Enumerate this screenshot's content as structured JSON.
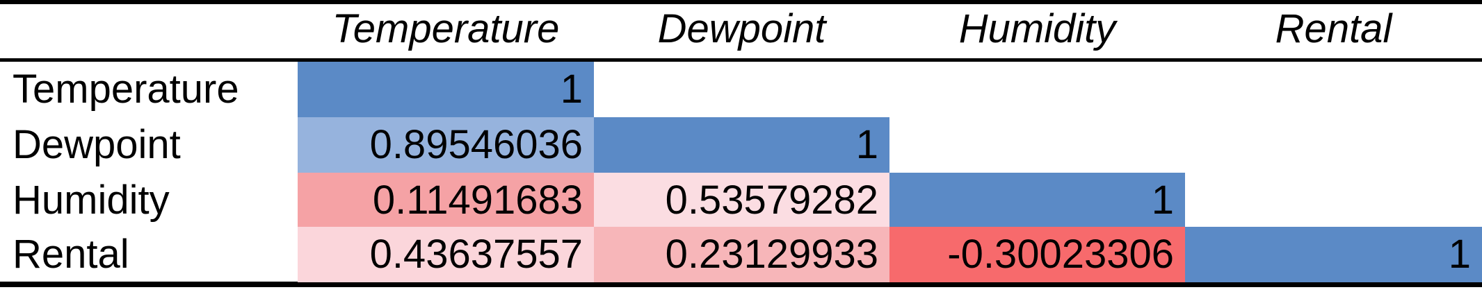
{
  "chart_data": {
    "type": "heatmap",
    "title": "",
    "columns": [
      "Temperature",
      "Dewpoint",
      "Humidity",
      "Rental"
    ],
    "rows": [
      "Temperature",
      "Dewpoint",
      "Humidity",
      "Rental"
    ],
    "cells": [
      [
        {
          "text": "1",
          "value": 1
        },
        null,
        null,
        null
      ],
      [
        {
          "text": "0.89546036",
          "value": 0.89546036
        },
        {
          "text": "1",
          "value": 1
        },
        null,
        null
      ],
      [
        {
          "text": "0.11491683",
          "value": 0.11491683
        },
        {
          "text": "0.53579282",
          "value": 0.53579282
        },
        {
          "text": "1",
          "value": 1
        },
        null
      ],
      [
        {
          "text": "0.43637557",
          "value": 0.43637557
        },
        {
          "text": "0.23129933",
          "value": 0.23129933
        },
        {
          "text": "-0.30023306",
          "value": -0.30023306
        },
        {
          "text": "1",
          "value": 1
        }
      ]
    ],
    "colors": {
      "high": "#5b8ac6",
      "low": "#f8696b",
      "mid": "#fcfcff"
    },
    "cell_fills": [
      [
        "#5b8ac6",
        null,
        null,
        null
      ],
      [
        "#96b3dd",
        "#5b8ac6",
        null,
        null
      ],
      [
        "#f5a2a5",
        "#fbdde2",
        "#5b8ac6",
        null
      ],
      [
        "#fbd6db",
        "#f7b6b9",
        "#f76a6c",
        "#5b8ac6"
      ]
    ],
    "grid": false,
    "legend": "none"
  }
}
